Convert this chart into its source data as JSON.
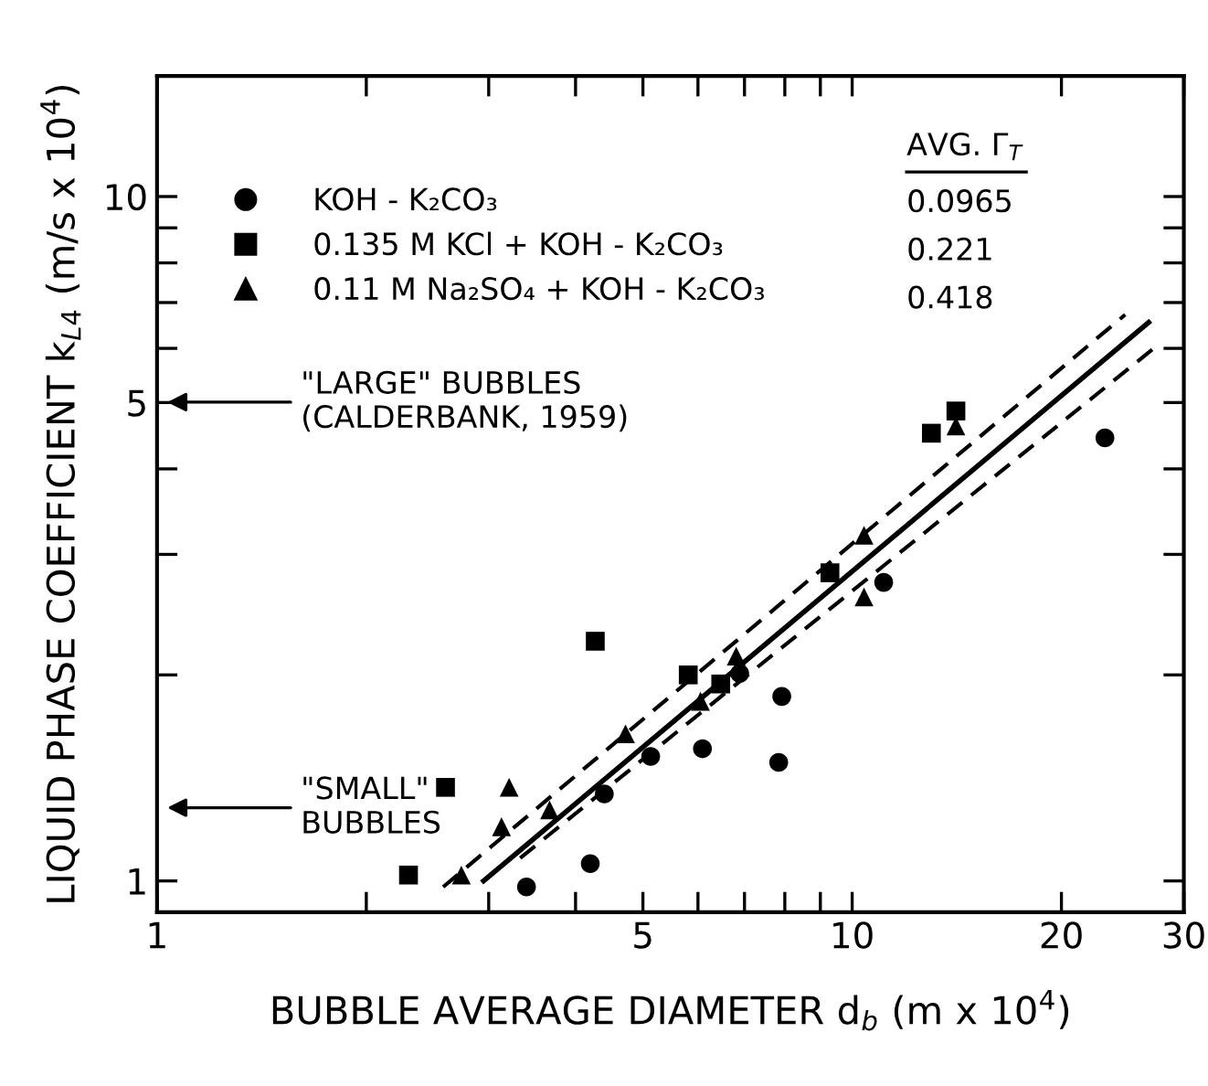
{
  "chart_data": {
    "type": "scatter",
    "xlabel": "BUBBLE AVERAGE DIAMETER d$_{b}$ (m x 10$^{4}$)",
    "ylabel": "LIQUID PHASE COEFFICIENT k$_{L4}$ (m/s x 10$^{4}$)",
    "log": "xy",
    "xlim": [
      1,
      30
    ],
    "ylim": [
      0.9,
      15
    ],
    "xticks": [
      1,
      {
        "value": 2,
        "label": null
      },
      {
        "value": 3,
        "label": null
      },
      {
        "value": 4,
        "label": null
      },
      5,
      {
        "value": 6,
        "label": null
      },
      {
        "value": 7,
        "label": null
      },
      {
        "value": 8,
        "label": null
      },
      {
        "value": 9,
        "label": null
      },
      10,
      20,
      30
    ],
    "yticks": [
      1,
      {
        "value": 2,
        "label": null
      },
      {
        "value": 3,
        "label": null
      },
      {
        "value": 4,
        "label": null
      },
      5,
      {
        "value": 6,
        "label": null
      },
      {
        "value": 7,
        "label": null
      },
      {
        "value": 8,
        "label": null
      },
      {
        "value": 9,
        "label": null
      },
      10
    ],
    "grid": false,
    "legend": "top left",
    "series": [
      {
        "name": "KOH - K₂CO₃",
        "color": "#000000",
        "marker": "circle",
        "x": [
          3.4,
          4.2,
          4.4,
          5.13,
          6.09,
          6.89,
          7.92,
          7.84,
          11.1,
          23.1
        ],
        "values": [
          0.98,
          1.06,
          1.34,
          1.52,
          1.56,
          2.01,
          1.86,
          1.49,
          2.73,
          4.44
        ]
      },
      {
        "name": "0.135 M KCl + KOH - K₂CO₃",
        "color": "#000000",
        "marker": "square",
        "x": [
          2.3,
          2.6,
          4.27,
          5.81,
          6.47,
          9.29,
          13.0,
          14.1
        ],
        "values": [
          1.02,
          1.37,
          2.24,
          2.0,
          1.94,
          2.82,
          4.51,
          4.86
        ]
      },
      {
        "name": "0.11 M Na₂SO₄ + KOH - K₂CO₃",
        "color": "#000000",
        "marker": "triangle",
        "x": [
          2.74,
          3.13,
          3.21,
          3.67,
          4.72,
          6.05,
          6.81,
          10.4,
          10.4,
          14.1
        ],
        "values": [
          1.02,
          1.2,
          1.37,
          1.27,
          1.64,
          1.83,
          2.13,
          2.6,
          3.2,
          4.62
        ]
      },
      {
        "type": "line",
        "color": "#000000",
        "line_style": "solid",
        "x": [
          2.95,
          26.7
        ],
        "values": [
          1.0,
          6.55
        ]
      },
      {
        "type": "line",
        "color": "#000000",
        "line_style": "dashed",
        "x": [
          2.58,
          24.7
        ],
        "values": [
          0.98,
          6.72
        ]
      },
      {
        "type": "line",
        "color": "#000000",
        "line_style": "dashed",
        "x": [
          3.33,
          27.1
        ],
        "values": [
          1.08,
          5.99
        ]
      }
    ],
    "annotations": [
      "\"LARGE\" BUBBLES\n(CALDERBANK, 1959)",
      "\"SMALL\"\nBUBBLES",
      "AVG. Γ$_{T}$",
      "0.0965",
      "0.221",
      "0.418"
    ]
  }
}
